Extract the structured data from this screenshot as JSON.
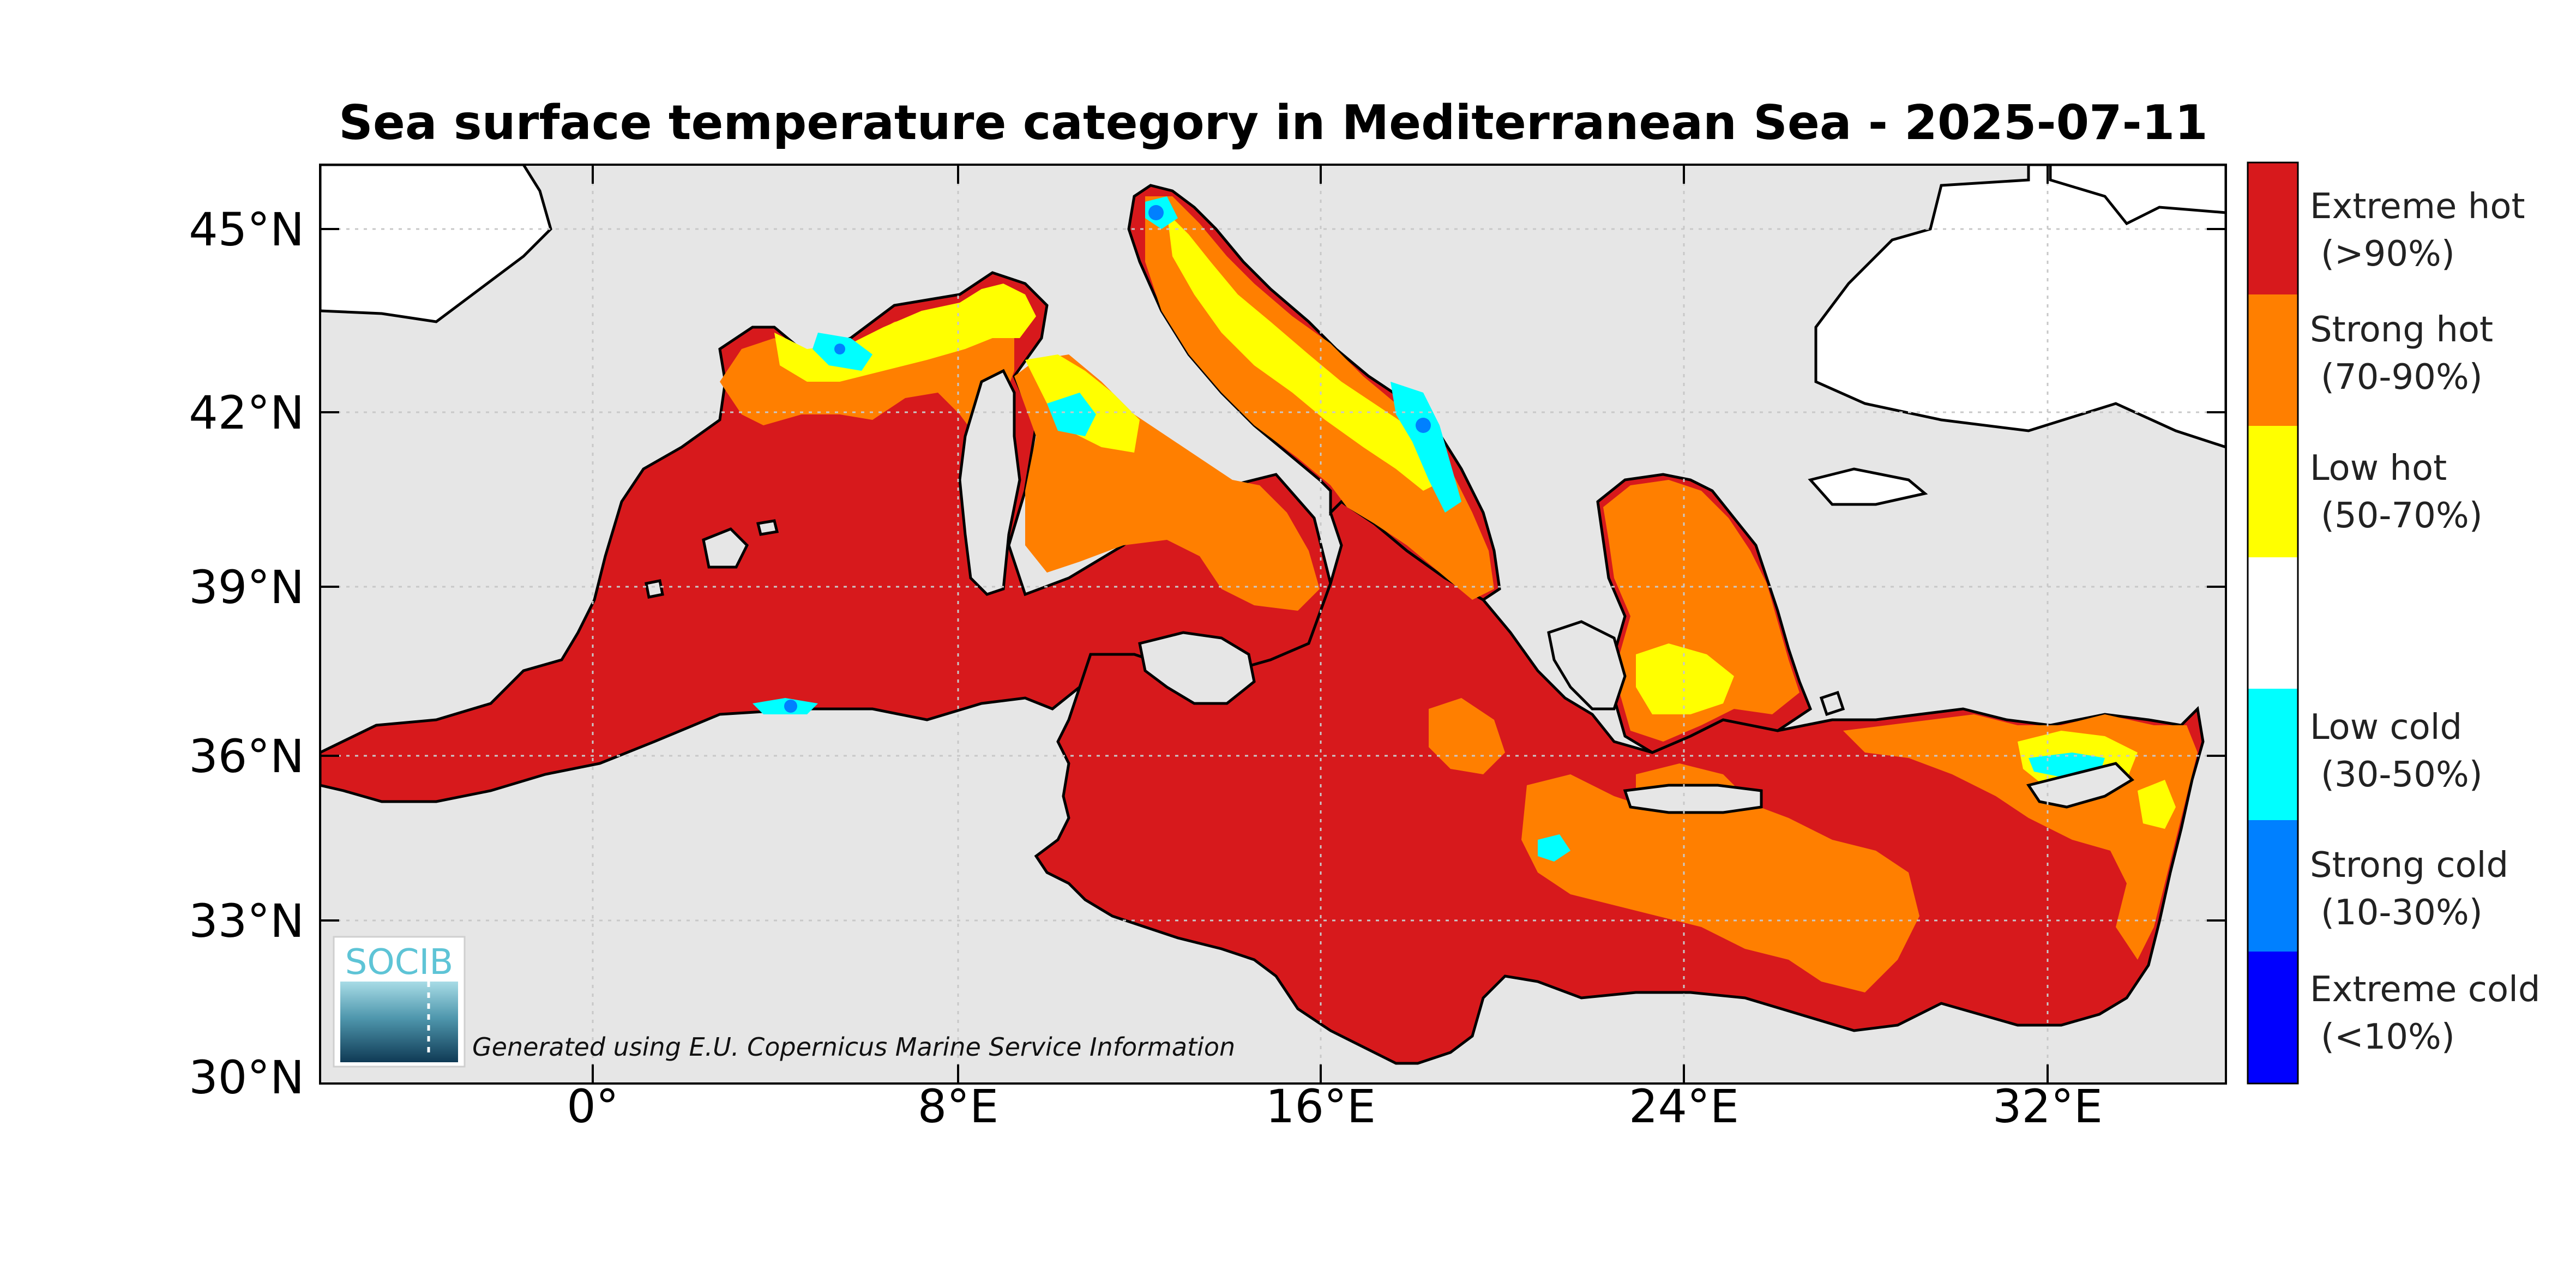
{
  "title": "Sea surface temperature category in Mediterranean Sea - 2025-07-11",
  "axes": {
    "y_ticks": [
      "45°N",
      "42°N",
      "39°N",
      "36°N",
      "33°N",
      "30°N"
    ],
    "x_ticks": [
      "0°",
      "8°E",
      "16°E",
      "24°E",
      "32°E"
    ]
  },
  "legend": [
    {
      "line1": "Extreme hot",
      "line2": "(>90%)",
      "color": "#d7191c"
    },
    {
      "line1": "Strong hot",
      "line2": "(70-90%)",
      "color": "#ff7f00"
    },
    {
      "line1": "Low hot",
      "line2": "(50-70%)",
      "color": "#ffff00"
    },
    {
      "line1": "",
      "line2": "",
      "color": "#ffffff"
    },
    {
      "line1": "Low cold",
      "line2": "(30-50%)",
      "color": "#00ffff"
    },
    {
      "line1": "Strong cold",
      "line2": "(10-30%)",
      "color": "#0080ff"
    },
    {
      "line1": "Extreme cold",
      "line2": "(<10%)",
      "color": "#0000ff"
    }
  ],
  "credit": "Generated using E.U. Copernicus Marine Service Information",
  "logo": {
    "text": "SOCIB"
  },
  "colors": {
    "land": "#e6e6e6",
    "extreme_hot": "#d7191c",
    "strong_hot": "#ff7f00",
    "low_hot": "#ffff00",
    "low_cold": "#00ffff",
    "strong_cold": "#0080ff"
  }
}
